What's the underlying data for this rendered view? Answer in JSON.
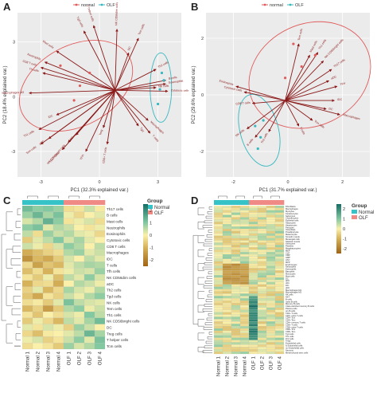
{
  "figure": {
    "panels": [
      "A",
      "B",
      "C",
      "D"
    ]
  },
  "chart_data": [
    {
      "panel": "A",
      "type": "scatter",
      "subtype": "pca-biplot",
      "legend": {
        "labels": [
          "normal",
          "OLF"
        ],
        "colors": [
          "#e05c5c",
          "#36b8c0"
        ],
        "placement": "top-center"
      },
      "xlabel": "PC1 (32.3% explained var.)",
      "ylabel": "PC2 (18.4% explained var.)",
      "xticks": [
        "-3",
        "0",
        "3"
      ],
      "yticks": [
        "3",
        "0",
        "-3"
      ],
      "xlim": [
        -4.2,
        4.2
      ],
      "ylim": [
        -4.4,
        4.6
      ],
      "points": {
        "normal": [
          [
            -1.0,
            0.6
          ],
          [
            -2.0,
            1.7
          ],
          [
            -0.5,
            1.3
          ],
          [
            -1.3,
            -0.2
          ]
        ],
        "OLF": [
          [
            3.1,
            0.4
          ],
          [
            3.2,
            1.3
          ],
          [
            3.0,
            -0.4
          ],
          [
            3.3,
            0.9
          ]
        ]
      },
      "ellipses": {
        "normal": {
          "cx": -1.2,
          "cy": 0.6,
          "rx": 3.1,
          "ry": 2.2,
          "angle": -28
        },
        "OLF": {
          "cx": 3.15,
          "cy": 0.5,
          "rx": 0.55,
          "ry": 1.9,
          "angle": 0
        }
      },
      "origin": [
        0.8,
        0.35
      ],
      "arrows": [
        {
          "label": "Macrophages M2",
          "x": -3.6,
          "y": 0.2
        },
        {
          "label": "Tgd cells",
          "x": -0.8,
          "y": 3.6
        },
        {
          "label": "Neutrophils",
          "x": -2.8,
          "y": 1.9
        },
        {
          "label": "Mast cells",
          "x": -2.2,
          "y": 2.5
        },
        {
          "label": "Th cells",
          "x": -2.9,
          "y": 1.3
        },
        {
          "label": "CD8 T cells",
          "x": -3.0,
          "y": 1.6
        },
        {
          "label": "T helper cells",
          "x": -0.3,
          "y": 3.9
        },
        {
          "label": "NK CD56dim cells",
          "x": 0.9,
          "y": 3.7
        },
        {
          "label": "Tcm cells",
          "x": 2.0,
          "y": 3.2
        },
        {
          "label": "DC",
          "x": 1.5,
          "y": 2.4
        },
        {
          "label": "Th2 cells",
          "x": 2.9,
          "y": 1.5
        },
        {
          "label": "B cells",
          "x": 3.4,
          "y": 0.9
        },
        {
          "label": "Cytotoxic cells",
          "x": 3.5,
          "y": 0.3
        },
        {
          "label": "NK cells",
          "x": 2.9,
          "y": 0.5
        },
        {
          "label": "Eosinophils",
          "x": 3.4,
          "y": 0.7
        },
        {
          "label": "Th1 cells",
          "x": -3.1,
          "y": -1.8
        },
        {
          "label": "iDC",
          "x": -2.2,
          "y": -1.0
        },
        {
          "label": "pDC",
          "x": -2.6,
          "y": -2.3
        },
        {
          "label": "Tem cells",
          "x": -3.0,
          "y": -2.6
        },
        {
          "label": "Th17 cells",
          "x": -1.9,
          "y": -2.9
        },
        {
          "label": "NK CD56bright cells",
          "x": -1.6,
          "y": -2.5
        },
        {
          "label": "aDC",
          "x": -1.2,
          "y": -2.1
        },
        {
          "label": "Treg",
          "x": 0.2,
          "y": -1.7
        },
        {
          "label": "TFH",
          "x": -0.7,
          "y": -3.0
        },
        {
          "label": "CD8+ T cells",
          "x": 0.4,
          "y": -2.6
        },
        {
          "label": "Macrophages",
          "x": 2.5,
          "y": -1.3
        },
        {
          "label": "T cells",
          "x": 2.6,
          "y": -2.0
        },
        {
          "label": "Tgd",
          "x": 2.0,
          "y": -1.6
        }
      ]
    },
    {
      "panel": "B",
      "type": "scatter",
      "subtype": "pca-biplot",
      "legend": {
        "labels": [
          "normal",
          "OLF"
        ],
        "colors": [
          "#e05c5c",
          "#36b8c0"
        ],
        "placement": "top-center"
      },
      "xlabel": "PC1 (31.7% explained var.)",
      "ylabel": "PC2 (29.6% explained var.)",
      "xticks": [
        "-2",
        "0",
        "2"
      ],
      "yticks": [
        "2",
        "0",
        "-2"
      ],
      "xlim": [
        -3.0,
        3.0
      ],
      "ylim": [
        -2.9,
        2.9
      ],
      "points": {
        "normal": [
          [
            0.2,
            1.8
          ],
          [
            1.0,
            1.4
          ],
          [
            0.5,
            1.0
          ],
          [
            -0.1,
            0.6
          ]
        ],
        "OLF": [
          [
            -1.2,
            -1.1
          ],
          [
            -1.0,
            -1.5
          ],
          [
            -0.9,
            -0.9
          ],
          [
            -1.1,
            -1.9
          ]
        ]
      },
      "ellipses": {
        "normal": {
          "cx": 0.8,
          "cy": 0.7,
          "rx": 2.3,
          "ry": 1.8,
          "angle": -25
        },
        "OLF": {
          "cx": -1.05,
          "cy": -1.25,
          "rx": 0.7,
          "ry": 1.3,
          "angle": -15
        }
      },
      "origin": [
        -0.1,
        -0.2
      ],
      "arrows": [
        {
          "label": "Tem cells",
          "x": 0.4,
          "y": 1.8
        },
        {
          "label": "Th1 cells",
          "x": 1.1,
          "y": 1.5
        },
        {
          "label": "NK CD56bright cells",
          "x": 1.3,
          "y": 1.2
        },
        {
          "label": "Mast cells",
          "x": 0.8,
          "y": 1.4
        },
        {
          "label": "Th17 cells",
          "x": 1.6,
          "y": 0.9
        },
        {
          "label": "Eosinophils",
          "x": -1.9,
          "y": 0.3
        },
        {
          "label": "Cytotoxic cells",
          "x": -1.6,
          "y": 0.1
        },
        {
          "label": "CD8 T cells",
          "x": -1.3,
          "y": -0.3
        },
        {
          "label": "NK cells",
          "x": -1.5,
          "y": -1.2
        },
        {
          "label": "B cells",
          "x": -1.2,
          "y": -1.5
        },
        {
          "label": "Th2 cells",
          "x": -0.7,
          "y": -1.3
        },
        {
          "label": "T cells",
          "x": 0.4,
          "y": -1.1
        },
        {
          "label": "Tcm cells",
          "x": 0.9,
          "y": -0.9
        },
        {
          "label": "DC",
          "x": 1.4,
          "y": -0.5
        },
        {
          "label": "iDC",
          "x": 1.7,
          "y": -0.2
        },
        {
          "label": "TFH",
          "x": 1.8,
          "y": 0.3
        },
        {
          "label": "aDC",
          "x": 1.5,
          "y": 0.5
        },
        {
          "label": "Macrophages",
          "x": 1.9,
          "y": -0.7
        }
      ]
    },
    {
      "panel": "C",
      "type": "heatmap",
      "columns": [
        "Normal 1",
        "Normal 2",
        "Normal 3",
        "Normal 4",
        "OLF 1",
        "OLF 2",
        "OLF 3",
        "OLF 4"
      ],
      "groups": [
        "Normal",
        "Normal",
        "Normal",
        "Normal",
        "OLF",
        "OLF",
        "OLF",
        "OLF"
      ],
      "group_legend": {
        "title": "Group",
        "labels": [
          "Normal",
          "OLF"
        ],
        "colors": [
          "#36c3c7",
          "#f08a84"
        ]
      },
      "color_legend": {
        "title": "",
        "ticks": [
          2,
          1,
          0,
          -1,
          -2
        ],
        "range": [
          -2.5,
          2.5
        ]
      },
      "rows": [
        "Th17 cells",
        "B cells",
        "Mast cells",
        "Neutrophils",
        "Eosinophils",
        "Cytotoxic cells",
        "CD8 T cells",
        "Macrophages",
        "iDC",
        "T cells",
        "Tfh cells",
        "NK CD56dim cells",
        "aDC",
        "Th2 cells",
        "Tgd cells",
        "NK cells",
        "Tem cells",
        "Th1 cells",
        "NK CD56bright cells",
        "DC",
        "Treg cells",
        "T helper cells",
        "Tcm cells"
      ],
      "values": [
        [
          1.2,
          0.9,
          1.0,
          0.8,
          -0.3,
          -0.2,
          0.4,
          -0.1
        ],
        [
          0.8,
          1.3,
          0.7,
          1.1,
          0.1,
          -0.4,
          0.0,
          0.2
        ],
        [
          0.3,
          0.6,
          1.4,
          0.9,
          -0.2,
          0.1,
          0.3,
          -0.3
        ],
        [
          0.9,
          1.1,
          0.2,
          0.6,
          0.4,
          0.0,
          -0.2,
          0.1
        ],
        [
          0.5,
          -0.3,
          0.8,
          0.4,
          0.6,
          0.2,
          0.1,
          -0.4
        ],
        [
          -0.6,
          0.2,
          0.5,
          1.0,
          0.3,
          0.7,
          0.2,
          0.0
        ],
        [
          0.4,
          0.1,
          -0.4,
          0.3,
          0.9,
          0.6,
          0.0,
          0.5
        ],
        [
          -1.1,
          -0.8,
          -0.5,
          -0.3,
          0.6,
          0.8,
          0.2,
          0.4
        ],
        [
          -1.6,
          -0.9,
          -1.2,
          -0.6,
          0.3,
          0.0,
          0.5,
          0.2
        ],
        [
          -0.4,
          -1.3,
          -0.7,
          -0.9,
          0.2,
          0.5,
          0.7,
          0.6
        ],
        [
          -0.8,
          -0.3,
          -1.0,
          -0.2,
          0.1,
          0.4,
          0.3,
          0.8
        ],
        [
          -0.2,
          -0.6,
          0.1,
          -0.8,
          0.5,
          0.2,
          0.9,
          0.3
        ],
        [
          -1.0,
          -0.4,
          -0.3,
          -1.1,
          0.0,
          0.6,
          0.4,
          0.1
        ],
        [
          -0.5,
          0.2,
          -0.9,
          -0.4,
          0.7,
          0.3,
          0.1,
          0.6
        ],
        [
          -0.7,
          -1.2,
          -0.2,
          -0.5,
          0.4,
          0.1,
          0.6,
          0.9
        ],
        [
          -0.3,
          -0.1,
          -0.6,
          0.2,
          1.1,
          0.5,
          0.3,
          0.2
        ],
        [
          -0.9,
          -0.5,
          -1.4,
          -0.6,
          0.6,
          0.9,
          0.1,
          0.4
        ],
        [
          -0.2,
          -0.7,
          0.0,
          -0.3,
          0.3,
          0.1,
          1.0,
          0.5
        ],
        [
          -0.6,
          0.1,
          -0.4,
          -0.9,
          0.5,
          0.2,
          0.7,
          1.2
        ],
        [
          0.2,
          -0.2,
          0.3,
          0.1,
          -0.5,
          0.8,
          0.4,
          0.0
        ],
        [
          -0.4,
          -0.8,
          -0.1,
          0.0,
          0.2,
          0.5,
          1.3,
          0.7
        ],
        [
          0.1,
          0.3,
          -0.5,
          -0.2,
          0.4,
          0.9,
          0.2,
          1.1
        ],
        [
          -0.3,
          0.0,
          -0.2,
          -0.6,
          0.8,
          0.3,
          0.6,
          1.0
        ]
      ]
    },
    {
      "panel": "D",
      "type": "heatmap",
      "columns": [
        "Normal 1",
        "Normal 2",
        "Normal 3",
        "Normal 4",
        "OLF 1",
        "OLF 2",
        "OLF 3",
        "OLF 4"
      ],
      "groups": [
        "Normal",
        "Normal",
        "Normal",
        "Normal",
        "OLF",
        "OLF",
        "OLF",
        "OLF"
      ],
      "group_legend": {
        "title": "Group",
        "labels": [
          "Normal",
          "OLF"
        ],
        "colors": [
          "#36c3c7",
          "#f08a84"
        ]
      },
      "color_legend": {
        "title": "",
        "ticks": [
          2,
          1,
          0,
          -1,
          -2
        ],
        "range": [
          -2.5,
          2.5
        ]
      },
      "row_count": 64,
      "rows": [
        "Fibroblasts",
        "Macrophages",
        "Myocytes",
        "Keratinocytes",
        "Sebocytes",
        "Chondrocytes",
        "Epithelial cells",
        "Adipocytes",
        "Hepatocytes",
        "Pericytes",
        "Osteoblast",
        "Preadipocytes",
        "Melanocytes",
        "Smooth muscle",
        "Mesangial cells",
        "Skeletal muscle",
        "Astrocytes",
        "Platelets",
        "Megakaryocytes",
        "MEP",
        "CLP",
        "CMP",
        "GMP",
        "HSC",
        "MPP",
        "Erythrocytes",
        "Neutrophils",
        "Eosinophils",
        "Basophils",
        "Monocytes",
        "Mast cells",
        "DC",
        "aDC",
        "cDC",
        "iDC",
        "pDC",
        "Macrophages M1",
        "Macrophages M2",
        "NK cells",
        "NKT",
        "B-cells",
        "naive B-cells",
        "Memory B-cells",
        "Class-switched memory B-cells",
        "Plasma cells",
        "pro B-cells",
        "CD4+ T-cells",
        "CD4+ naive T-cells",
        "CD4+ Tcm",
        "CD4+ Tem",
        "CD4+ memory T-cells",
        "CD8+ T-cells",
        "CD8+ naive T-cells",
        "CD8+ Tcm",
        "CD8+ Tem",
        "Tgd cells",
        "Th1 cells",
        "Th2 cells",
        "Tregs",
        "Endothelial cells",
        "ly Endothelial cells",
        "mv Endothelial cells",
        "Neurons",
        "Mesenchymal stem cells"
      ]
    }
  ]
}
